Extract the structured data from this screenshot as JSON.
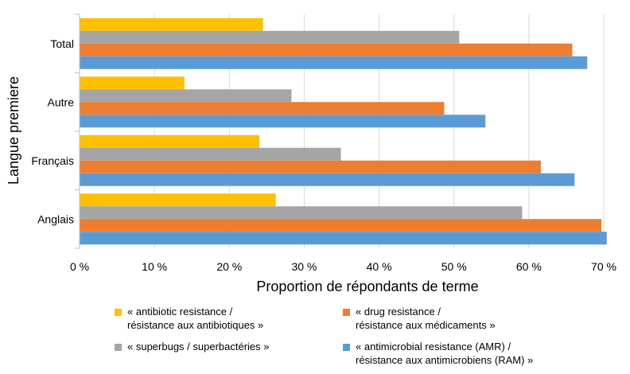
{
  "chart_data": {
    "type": "bar",
    "orientation": "horizontal",
    "title": "",
    "xlabel": "Proportion de répondants de terme",
    "ylabel": "Langue premiere",
    "xlim": [
      0,
      70
    ],
    "xticks": [
      0,
      10,
      20,
      30,
      40,
      50,
      60,
      70
    ],
    "xtick_labels": [
      "0 %",
      "10 %",
      "20 %",
      "30 %",
      "40 %",
      "50 %",
      "60 %",
      "70 %"
    ],
    "grid": true,
    "legend_position": "bottom",
    "categories": [
      "Total",
      "Autre",
      "Français",
      "Anglais"
    ],
    "series": [
      {
        "name": "« antibiotic resistance / résistance aux antibiotiques »",
        "legend_lines": [
          "« antibiotic resistance /",
          "résistance aux antibiotiques »"
        ],
        "color": "#FFC000",
        "values": [
          24.5,
          14.0,
          24.0,
          26.2
        ]
      },
      {
        "name": "« superbugs / superbactéries »",
        "legend_lines": [
          "« superbugs / superbactéries »"
        ],
        "color": "#A5A5A5",
        "values": [
          50.7,
          28.3,
          34.9,
          59.1
        ]
      },
      {
        "name": "« drug resistance / résistance aux médicaments »",
        "legend_lines": [
          "« drug resistance /",
          "résistance aux médicaments »"
        ],
        "color": "#ED7D31",
        "values": [
          65.8,
          48.7,
          61.6,
          69.7
        ]
      },
      {
        "name": "« antimicrobial resistance (AMR) / résistance aux antimicrobiens (RAM) »",
        "legend_lines": [
          "« antimicrobial resistance (AMR) /",
          "résistance aux antimicrobiens (RAM) »"
        ],
        "color": "#5B9BD5",
        "values": [
          67.8,
          54.2,
          66.1,
          70.4
        ]
      }
    ]
  }
}
